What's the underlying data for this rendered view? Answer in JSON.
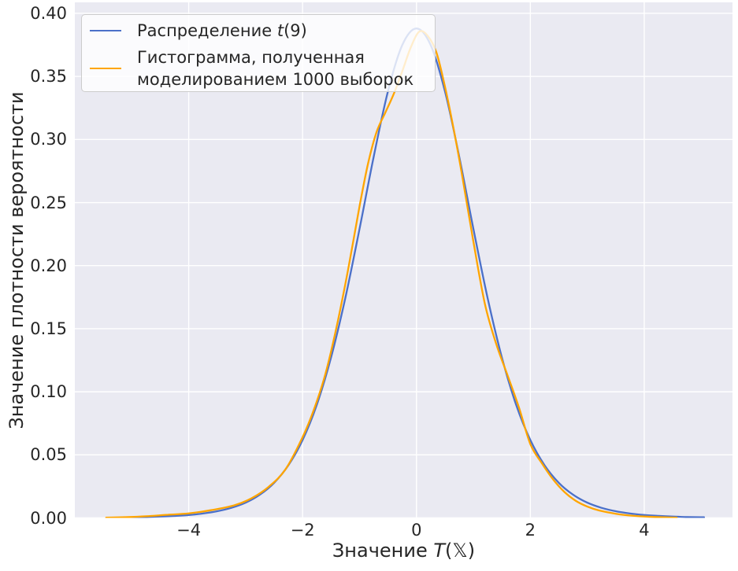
{
  "figure": {
    "background": "#ffffff",
    "axes_background": "#eaeaf2",
    "grid_color": "#ffffff",
    "text_color": "#262626"
  },
  "axes": {
    "xlabel": {
      "prefix": "Значение ",
      "math": "T",
      "suffix": "(𝕏)"
    },
    "ylabel": "Значение плотности вероятности",
    "x_ticks": {
      "values": [
        -4,
        -2,
        0,
        2,
        4
      ],
      "labels": [
        "−4",
        "−2",
        "0",
        "2",
        "4"
      ]
    },
    "y_ticks": {
      "values": [
        0,
        0.05,
        0.1,
        0.15,
        0.2,
        0.25,
        0.3,
        0.35,
        0.4
      ],
      "labels": [
        "0.00",
        "0.05",
        "0.10",
        "0.15",
        "0.20",
        "0.25",
        "0.30",
        "0.35",
        "0.40"
      ]
    }
  },
  "legend": {
    "items": [
      {
        "prefix": "Распределение ",
        "math": "t",
        "suffix": "(9)",
        "color": "#4b70c9"
      },
      {
        "line1": "Гистограмма, полученная",
        "line2": "моделированием 1000 выборок",
        "color": "#ffa500"
      }
    ]
  },
  "chart_data": {
    "type": "line",
    "title": "",
    "xlabel": "Значение T(𝕏)",
    "ylabel": "Значение плотности вероятности",
    "xlim": [
      -6.0,
      5.55
    ],
    "ylim": [
      0,
      0.4087
    ],
    "grid": true,
    "legend_position": "upper left",
    "series": [
      {
        "name": "Распределение t(9)",
        "color": "#4b70c9",
        "x": [
          -5.05,
          -4.75,
          -4.5,
          -4.25,
          -4,
          -3.75,
          -3.5,
          -3.25,
          -3,
          -2.75,
          -2.5,
          -2.25,
          -2,
          -1.75,
          -1.5,
          -1.25,
          -1,
          -0.75,
          -0.5,
          -0.25,
          0,
          0.25,
          0.5,
          0.75,
          1,
          1.25,
          1.5,
          1.75,
          2,
          2.25,
          2.5,
          2.75,
          3,
          3.25,
          3.5,
          3.75,
          4,
          4.25,
          4.5,
          4.75,
          5.05
        ],
        "y": [
          0.0005,
          0.0007,
          0.0011,
          0.0016,
          0.0023,
          0.0035,
          0.0053,
          0.008,
          0.0121,
          0.0184,
          0.0278,
          0.0417,
          0.0617,
          0.0897,
          0.1272,
          0.1742,
          0.2291,
          0.2866,
          0.3383,
          0.3748,
          0.388,
          0.3748,
          0.3383,
          0.2866,
          0.2291,
          0.1742,
          0.1272,
          0.0897,
          0.0617,
          0.0417,
          0.0278,
          0.0184,
          0.0121,
          0.008,
          0.0053,
          0.0035,
          0.0023,
          0.0016,
          0.0011,
          0.0007,
          0.0005
        ]
      },
      {
        "name": "Гистограмма, полученная моделированием 1000 выборок",
        "color": "#ffa500",
        "x": [
          -5.45,
          -5.1,
          -4.75,
          -4.4,
          -4.0,
          -3.6,
          -3.2,
          -2.9,
          -2.6,
          -2.3,
          -2.0,
          -1.8,
          -1.6,
          -1.4,
          -1.2,
          -1.0,
          -0.85,
          -0.7,
          -0.55,
          -0.4,
          -0.25,
          -0.1,
          0.05,
          0.2,
          0.35,
          0.5,
          0.65,
          0.8,
          1.0,
          1.2,
          1.4,
          1.6,
          1.8,
          2.0,
          2.2,
          2.4,
          2.6,
          2.8,
          3.0,
          3.2,
          3.5,
          3.8,
          4.1,
          4.35,
          4.57
        ],
        "y": [
          0.0002,
          0.0006,
          0.0013,
          0.0024,
          0.0036,
          0.0062,
          0.01,
          0.0155,
          0.0245,
          0.0385,
          0.064,
          0.086,
          0.114,
          0.152,
          0.197,
          0.247,
          0.281,
          0.306,
          0.321,
          0.336,
          0.354,
          0.373,
          0.3855,
          0.382,
          0.369,
          0.342,
          0.309,
          0.272,
          0.219,
          0.17,
          0.138,
          0.113,
          0.0875,
          0.0585,
          0.0435,
          0.0305,
          0.0205,
          0.0135,
          0.009,
          0.006,
          0.0033,
          0.0017,
          0.0009,
          0.0005,
          0.0002
        ]
      }
    ]
  }
}
